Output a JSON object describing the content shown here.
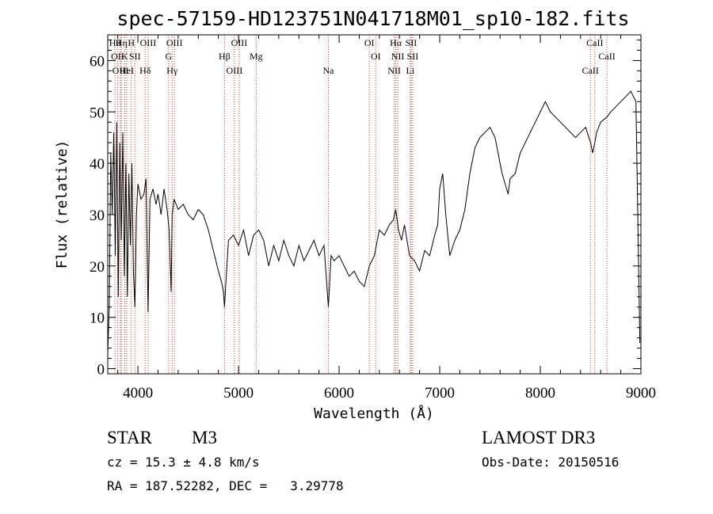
{
  "chart_data": {
    "type": "line",
    "title": "spec-57159-HD123751N041718M01_sp10-182.fits",
    "xlabel": "Wavelength (Å)",
    "ylabel": "Flux (relative)",
    "xlim": [
      3700,
      9000
    ],
    "ylim": [
      -1,
      65
    ],
    "xticks": [
      4000,
      5000,
      6000,
      7000,
      8000,
      9000
    ],
    "yticks": [
      0,
      10,
      20,
      30,
      40,
      50,
      60
    ],
    "grid": false,
    "series": [
      {
        "x": [
          3700,
          3715,
          3730,
          3745,
          3760,
          3775,
          3790,
          3805,
          3820,
          3835,
          3850,
          3865,
          3880,
          3895,
          3910,
          3925,
          3940,
          3955,
          3970,
          3985,
          4000,
          4030,
          4060,
          4080,
          4101,
          4120,
          4150,
          4180,
          4200,
          4230,
          4260,
          4290,
          4310,
          4330,
          4340,
          4360,
          4400,
          4450,
          4500,
          4550,
          4600,
          4650,
          4700,
          4750,
          4800,
          4830,
          4850,
          4861,
          4875,
          4900,
          4950,
          5000,
          5050,
          5100,
          5150,
          5200,
          5250,
          5300,
          5350,
          5400,
          5450,
          5500,
          5550,
          5600,
          5650,
          5700,
          5750,
          5800,
          5850,
          5893,
          5920,
          5950,
          6000,
          6050,
          6100,
          6150,
          6200,
          6250,
          6300,
          6350,
          6400,
          6450,
          6500,
          6540,
          6563,
          6590,
          6620,
          6650,
          6700,
          6750,
          6800,
          6850,
          6900,
          6950,
          6980,
          7000,
          7030,
          7060,
          7100,
          7150,
          7200,
          7250,
          7300,
          7350,
          7400,
          7450,
          7500,
          7550,
          7600,
          7620,
          7650,
          7680,
          7700,
          7750,
          7800,
          7850,
          7900,
          7950,
          8000,
          8050,
          8100,
          8150,
          8200,
          8250,
          8300,
          8350,
          8400,
          8450,
          8500,
          8520,
          8542,
          8560,
          8600,
          8662,
          8700,
          8750,
          8800,
          8850,
          8900,
          8950,
          8990
        ],
        "values": [
          3,
          12,
          42,
          30,
          46,
          22,
          48,
          14,
          44,
          25,
          46,
          18,
          40,
          14,
          38,
          24,
          40,
          19,
          12,
          30,
          36,
          33,
          34,
          37,
          11,
          33,
          35,
          32,
          34,
          30,
          35,
          31,
          27,
          15,
          30,
          33,
          31,
          32,
          30,
          29,
          31,
          30,
          27,
          23,
          19,
          17,
          15,
          12,
          17,
          25,
          26,
          24,
          27,
          22,
          26,
          27,
          25,
          20,
          24,
          21,
          25,
          22,
          20,
          24,
          21,
          23,
          25,
          22,
          24,
          12,
          22,
          21,
          22,
          20,
          18,
          19,
          17,
          16,
          20,
          22,
          27,
          26,
          28,
          29,
          31,
          27,
          25,
          28,
          22,
          21,
          19,
          23,
          22,
          26,
          28,
          35,
          38,
          30,
          22,
          25,
          27,
          31,
          38,
          43,
          45,
          46,
          47,
          45,
          40,
          38,
          36,
          34,
          37,
          38,
          42,
          44,
          46,
          48,
          50,
          52,
          50,
          49,
          48,
          47,
          46,
          45,
          46,
          47,
          44,
          42,
          44,
          46,
          48,
          49,
          50,
          51,
          52,
          53,
          54,
          52,
          5
        ]
      }
    ],
    "line_markers": [
      {
        "wl": 3771,
        "label": "Hθ"
      },
      {
        "wl": 3798,
        "label": "OII"
      },
      {
        "wl": 3826,
        "label": "OIII"
      },
      {
        "wl": 3835,
        "label": "Hη"
      },
      {
        "wl": 3869,
        "label": "K"
      },
      {
        "wl": 3889,
        "label": "HeI"
      },
      {
        "wl": 3934,
        "label": "H"
      },
      {
        "wl": 3970,
        "label": "SII"
      },
      {
        "wl": 4072,
        "label": "Hδ"
      },
      {
        "wl": 4101,
        "label": "OIII"
      },
      {
        "wl": 4305,
        "label": "G"
      },
      {
        "wl": 4340,
        "label": "Hγ"
      },
      {
        "wl": 4363,
        "label": "OIII"
      },
      {
        "wl": 4861,
        "label": "Hβ"
      },
      {
        "wl": 4959,
        "label": "OIII"
      },
      {
        "wl": 5007,
        "label": "OIII"
      },
      {
        "wl": 5175,
        "label": "Mg"
      },
      {
        "wl": 5893,
        "label": "Na"
      },
      {
        "wl": 6300,
        "label": "OI"
      },
      {
        "wl": 6364,
        "label": "OI"
      },
      {
        "wl": 6548,
        "label": "NII"
      },
      {
        "wl": 6563,
        "label": "Hα"
      },
      {
        "wl": 6583,
        "label": "NII"
      },
      {
        "wl": 6707,
        "label": "Li"
      },
      {
        "wl": 6716,
        "label": "SII"
      },
      {
        "wl": 6731,
        "label": "SII"
      },
      {
        "wl": 8498,
        "label": "CaII"
      },
      {
        "wl": 8542,
        "label": "CaII"
      },
      {
        "wl": 8662,
        "label": "CaII"
      }
    ]
  },
  "info": {
    "object_class": "STAR",
    "subclass": "M3",
    "survey": "LAMOST DR3",
    "cz": "cz = 15.3 ± 4.8 km/s",
    "obs_date": "Obs-Date: 20150516",
    "coords": "RA = 187.52282, DEC =   3.29778"
  },
  "colors": {
    "spectrum": "#000000",
    "marker": "#d33a2c",
    "axes": "#000000"
  }
}
